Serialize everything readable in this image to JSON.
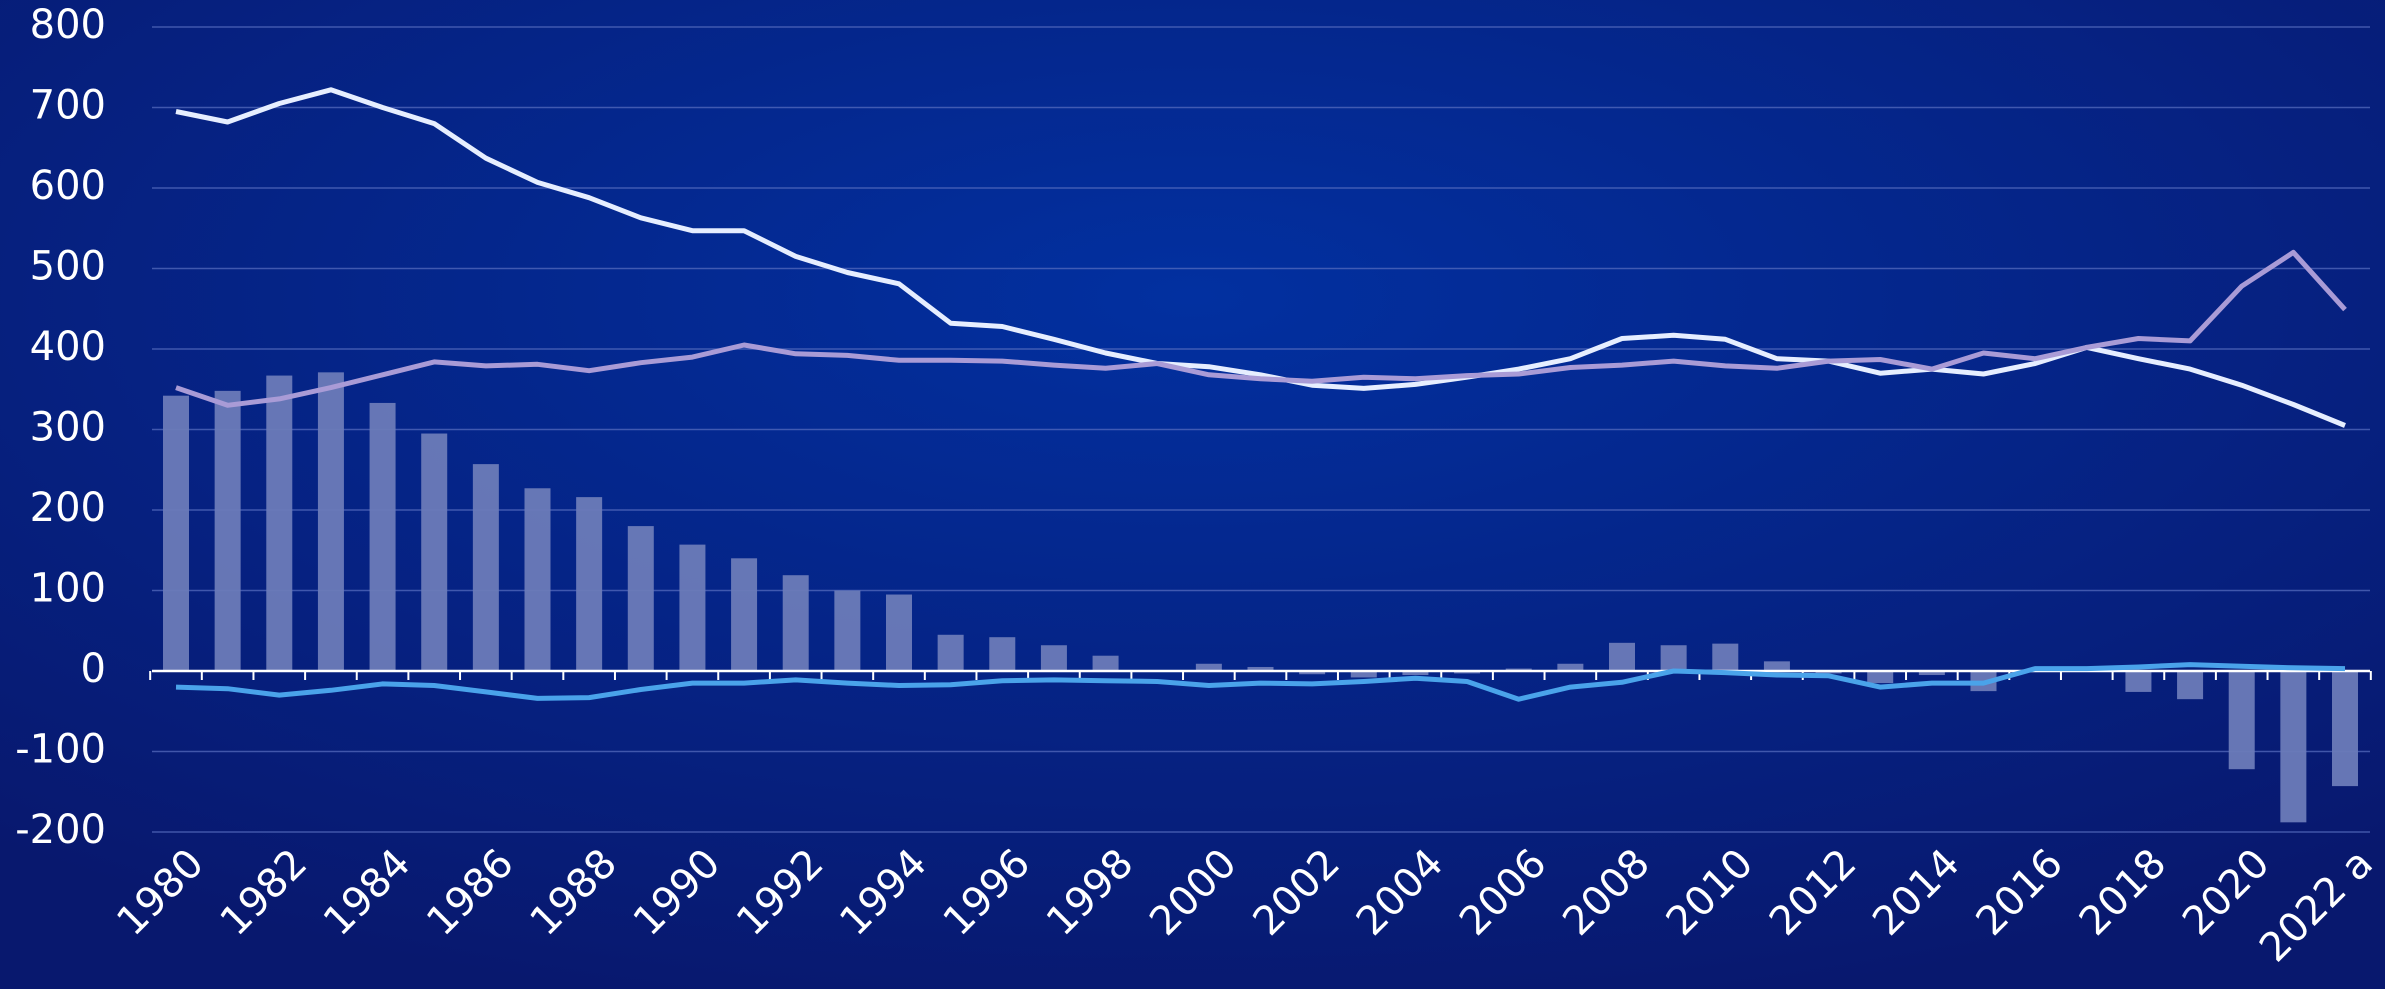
{
  "chart_data": {
    "type": "bar",
    "categories": [
      "1980",
      null,
      "1982",
      null,
      "1984",
      null,
      "1986",
      null,
      "1988",
      null,
      "1990",
      null,
      "1992",
      null,
      "1994",
      null,
      "1996",
      null,
      "1998",
      null,
      "2000",
      null,
      "2002",
      null,
      "2004",
      null,
      "2006",
      null,
      "2008",
      null,
      "2010",
      null,
      "2012",
      null,
      "2014",
      null,
      "2016",
      null,
      "2018",
      null,
      "2020",
      null,
      "2022 a"
    ],
    "series": [
      {
        "type": "bar",
        "color": "#6b7bb8",
        "values": [
          342,
          348,
          367,
          371,
          333,
          295,
          257,
          227,
          216,
          180,
          157,
          140,
          119,
          100,
          95,
          45,
          42,
          32,
          19,
          0,
          9,
          5,
          -4,
          -8,
          -5,
          -3,
          3,
          9,
          35,
          32,
          34,
          12,
          -3,
          -15,
          -5,
          -25,
          2,
          2,
          -26,
          -35,
          -122,
          -188,
          -143
        ]
      },
      {
        "type": "line",
        "color": "#e6eeff",
        "values": [
          695,
          682,
          705,
          722,
          700,
          680,
          637,
          607,
          588,
          563,
          547,
          547,
          515,
          495,
          481,
          432,
          428,
          412,
          395,
          382,
          378,
          368,
          355,
          351,
          356,
          365,
          375,
          388,
          413,
          417,
          412,
          388,
          385,
          370,
          375,
          369,
          382,
          402,
          388,
          375,
          355,
          331,
          305
        ]
      },
      {
        "type": "line",
        "color": "#a99bd6",
        "values": [
          352,
          330,
          338,
          352,
          368,
          384,
          379,
          381,
          373,
          383,
          390,
          405,
          394,
          392,
          386,
          386,
          385,
          380,
          376,
          382,
          368,
          363,
          360,
          365,
          363,
          367,
          369,
          377,
          380,
          385,
          379,
          376,
          385,
          387,
          375,
          395,
          388,
          402,
          413,
          410,
          478,
          520,
          449
        ]
      },
      {
        "type": "line",
        "color": "#4aa3ea",
        "values": [
          -20,
          -22,
          -30,
          -24,
          -16,
          -18,
          -26,
          -34,
          -33,
          -23,
          -15,
          -15,
          -11,
          -15,
          -18,
          -17,
          -12,
          -11,
          -12,
          -13,
          -18,
          -15,
          -16,
          -13,
          -9,
          -13,
          -35,
          -20,
          -14,
          0,
          -2,
          -5,
          -6,
          -20,
          -15,
          -15,
          3,
          3,
          5,
          8,
          6,
          4,
          3
        ]
      }
    ],
    "ylim": [
      -200,
      800
    ],
    "yticks": [
      -200,
      -100,
      0,
      100,
      200,
      300,
      400,
      500,
      600,
      700,
      800
    ],
    "grid": true
  }
}
